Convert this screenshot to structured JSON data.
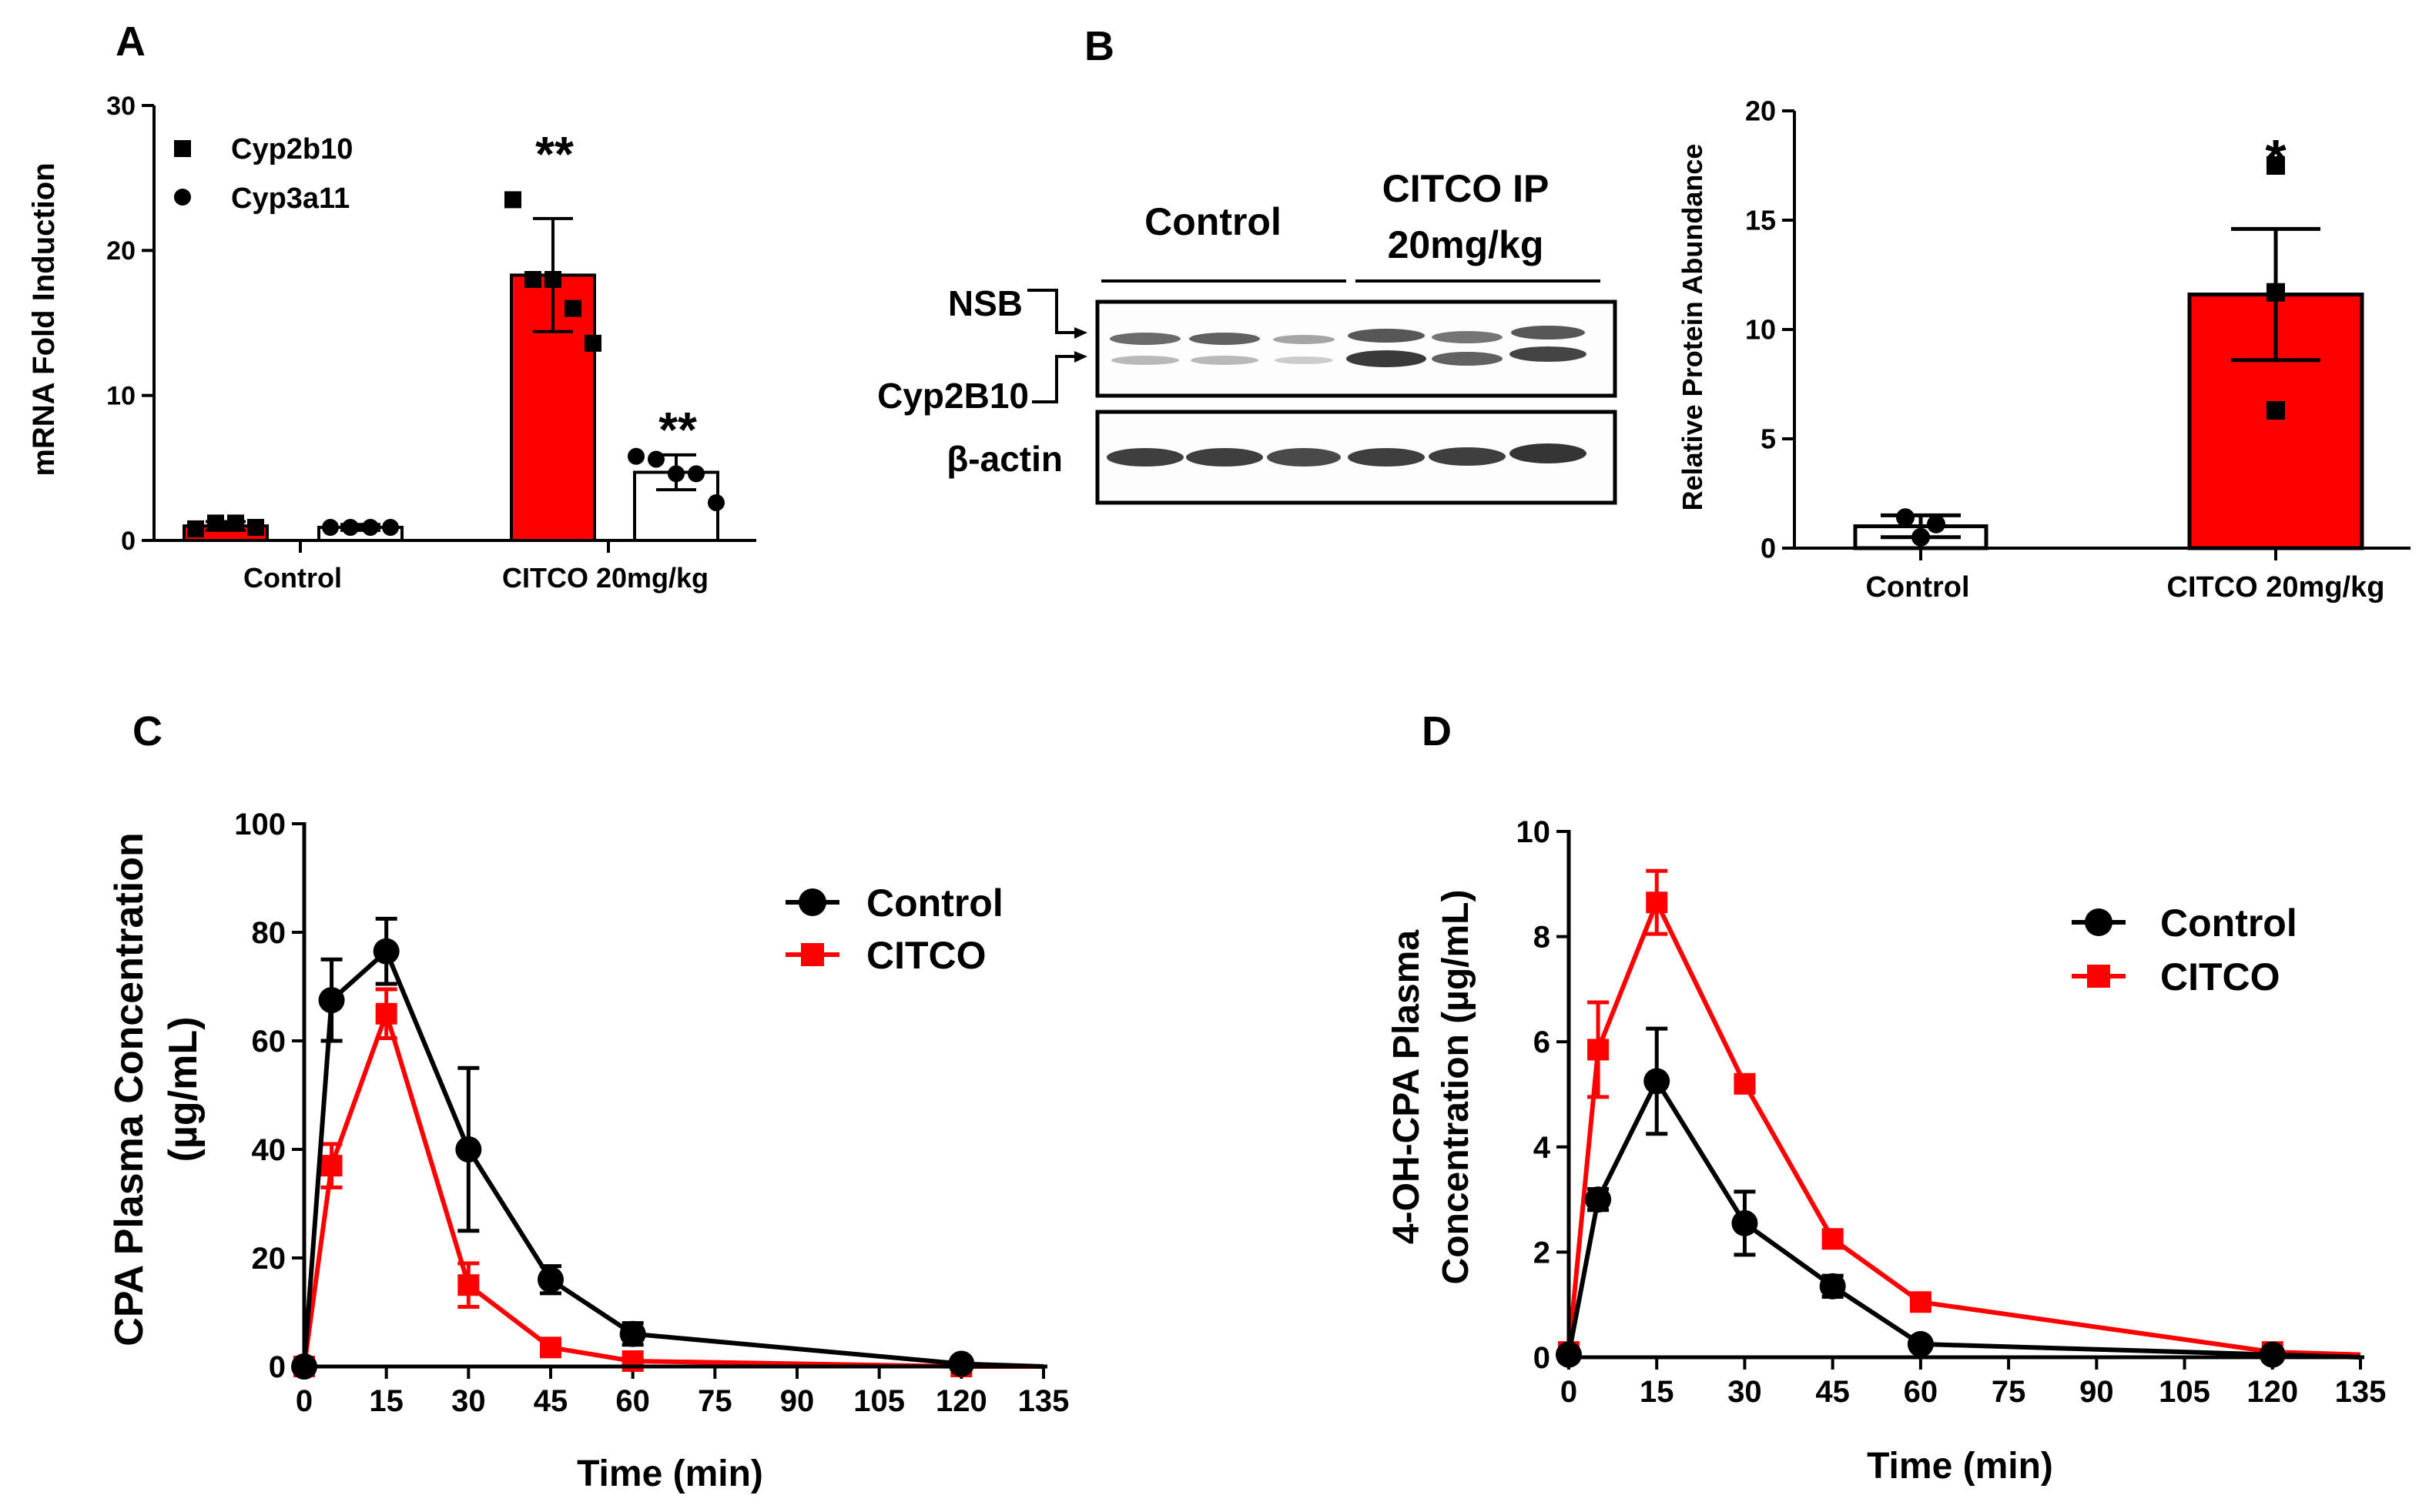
{
  "colors": {
    "red": "#ff0000",
    "black": "#000000",
    "white": "#ffffff"
  },
  "panels": {
    "A": "A",
    "B": "B",
    "C": "C",
    "D": "D"
  },
  "chart_data": [
    {
      "id": "A",
      "type": "bar",
      "ylabel": "mRNA Fold Induction",
      "ylim": [
        0,
        30
      ],
      "yticks": [
        "0",
        "10",
        "20",
        "30"
      ],
      "categories": [
        "Control",
        "CITCO 20mg/kg"
      ],
      "legend": [
        {
          "label": "Cyp2b10",
          "marker": "square"
        },
        {
          "label": "Cyp3a11",
          "marker": "circle"
        }
      ],
      "series": [
        {
          "name": "Cyp2b10",
          "values": [
            1.0,
            18.3
          ],
          "err": [
            0.3,
            3.9
          ],
          "points": [
            [
              0.8,
              1.2,
              1.2,
              0.9
            ],
            [
              23.5,
              18.0,
              18.0,
              16.0,
              13.6
            ]
          ]
        },
        {
          "name": "Cyp3a11",
          "values": [
            0.9,
            4.7
          ],
          "err": [
            0.2,
            1.2
          ],
          "points": [
            [
              0.9,
              0.9,
              0.9,
              0.9
            ],
            [
              5.8,
              5.6,
              4.6,
              4.6,
              2.6
            ]
          ]
        }
      ],
      "annotations": [
        "**",
        "**"
      ]
    },
    {
      "id": "B-blot",
      "type": "blot",
      "lane_groups": [
        "Control",
        "CITCO IP",
        "20mg/kg"
      ],
      "band_labels": {
        "nsb": "NSB",
        "cyp": "Cyp2B10",
        "actin": "β-actin"
      }
    },
    {
      "id": "B",
      "type": "bar",
      "ylabel": "Relative Protein Abundance",
      "ylim": [
        0,
        20
      ],
      "yticks": [
        "0",
        "5",
        "10",
        "15",
        "20"
      ],
      "categories": [
        "Control",
        "CITCO 20mg/kg"
      ],
      "series": [
        {
          "name": "Relative Protein Abundance",
          "values": [
            1.0,
            11.6
          ],
          "err": [
            0.5,
            3.0
          ],
          "points": [
            [
              1.4,
              0.5,
              1.1
            ],
            [
              17.5,
              11.7,
              6.3
            ]
          ]
        }
      ],
      "annotations": [
        "*"
      ]
    },
    {
      "id": "C",
      "type": "line",
      "xlabel": "Time (min)",
      "ylabel": [
        "CPA Plasma  Concentration",
        "(µg/mL)"
      ],
      "xlim": [
        0,
        135
      ],
      "ylim": [
        0,
        100
      ],
      "xticks": [
        "0",
        "15",
        "30",
        "45",
        "60",
        "75",
        "90",
        "105",
        "120",
        "135"
      ],
      "yticks": [
        "0",
        "20",
        "40",
        "60",
        "80",
        "100"
      ],
      "series": [
        {
          "name": "Control",
          "x": [
            0,
            5,
            15,
            30,
            45,
            60,
            120,
            135
          ],
          "y": [
            0,
            67.5,
            76.5,
            40,
            16,
            6,
            0.5,
            0
          ],
          "err": [
            0,
            7.5,
            6,
            15,
            2.5,
            2,
            0,
            0
          ]
        },
        {
          "name": "CITCO",
          "x": [
            0,
            5,
            15,
            30,
            45,
            60,
            120,
            135
          ],
          "y": [
            0,
            37,
            65,
            15,
            3.5,
            1,
            0,
            0
          ],
          "err": [
            0,
            4,
            4.5,
            4,
            0.5,
            0.3,
            0,
            0
          ]
        }
      ]
    },
    {
      "id": "D",
      "type": "line",
      "xlabel": "Time (min)",
      "ylabel": [
        "4-OH-CPA  Plasma",
        "Concentration (µg/mL)"
      ],
      "xlim": [
        0,
        135
      ],
      "ylim": [
        0,
        10
      ],
      "xticks": [
        "0",
        "15",
        "30",
        "45",
        "60",
        "75",
        "90",
        "105",
        "120",
        "135"
      ],
      "yticks": [
        "0",
        "2",
        "4",
        "6",
        "8",
        "10"
      ],
      "series": [
        {
          "name": "Control",
          "x": [
            0,
            5,
            15,
            30,
            45,
            60,
            120,
            135
          ],
          "y": [
            0.05,
            3.0,
            5.25,
            2.55,
            1.35,
            0.25,
            0.05,
            0
          ],
          "err": [
            0,
            0.2,
            1.0,
            0.6,
            0.2,
            0.05,
            0,
            0
          ]
        },
        {
          "name": "CITCO",
          "x": [
            0,
            5,
            15,
            30,
            45,
            60,
            120,
            135
          ],
          "y": [
            0.1,
            5.85,
            8.65,
            5.2,
            2.25,
            1.05,
            0.1,
            0.05
          ],
          "err": [
            0,
            0.9,
            0.6,
            0.1,
            0.1,
            0.05,
            0,
            0
          ]
        }
      ]
    }
  ]
}
